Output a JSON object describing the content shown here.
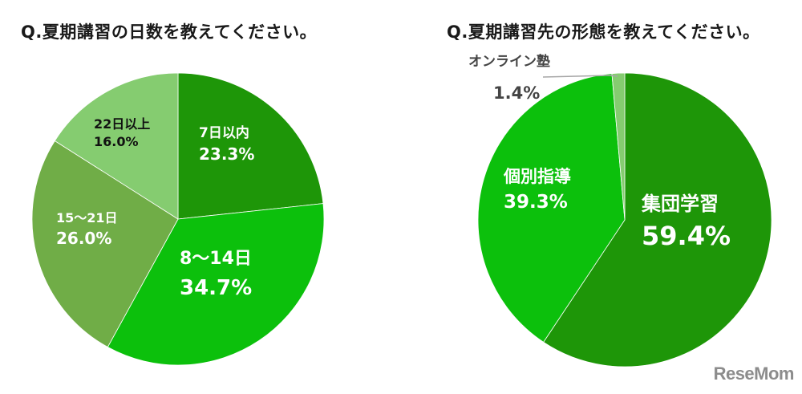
{
  "chart_data": [
    {
      "type": "pie",
      "title": "Q.夏期講習の日数を教えてください。",
      "categories": [
        "7日以内",
        "8〜14日",
        "15〜21日",
        "22日以上"
      ],
      "values": [
        23.3,
        34.7,
        26.0,
        16.0
      ],
      "value_labels": [
        "23.3%",
        "34.7%",
        "26.0%",
        "16.0%"
      ],
      "colors": [
        "#1e9608",
        "#0cc00c",
        "#70ad47",
        "#85cc70"
      ],
      "start_angle_deg": 0,
      "direction": "clockwise",
      "legend": "none (data labels inside slices)"
    },
    {
      "type": "pie",
      "title": "Q.夏期講習先の形態を教えてください。",
      "categories": [
        "集団学習",
        "個別指導",
        "オンライン塾"
      ],
      "values": [
        59.4,
        39.3,
        1.4
      ],
      "value_labels": [
        "59.4%",
        "39.3%",
        "1.4%"
      ],
      "colors": [
        "#1e9608",
        "#0cc00c",
        "#85cc70"
      ],
      "start_angle_deg": 0,
      "direction": "clockwise",
      "legend": "none (data labels; オンライン塾 label outside with leader line)"
    }
  ],
  "charts": {
    "left": {
      "title": "Q.夏期講習の日数を教えてください。",
      "labels": [
        {
          "name": "7日以内",
          "pct": "23.3%"
        },
        {
          "name": "8〜14日",
          "pct": "34.7%"
        },
        {
          "name": "15〜21日",
          "pct": "26.0%"
        },
        {
          "name": "22日以上",
          "pct": "16.0%"
        }
      ]
    },
    "right": {
      "title": "Q.夏期講習先の形態を教えてください。",
      "labels": [
        {
          "name": "集団学習",
          "pct": "59.4%"
        },
        {
          "name": "個別指導",
          "pct": "39.3%"
        },
        {
          "name": "オンライン塾",
          "pct": "1.4%"
        }
      ]
    }
  },
  "watermark": "ReseMom"
}
